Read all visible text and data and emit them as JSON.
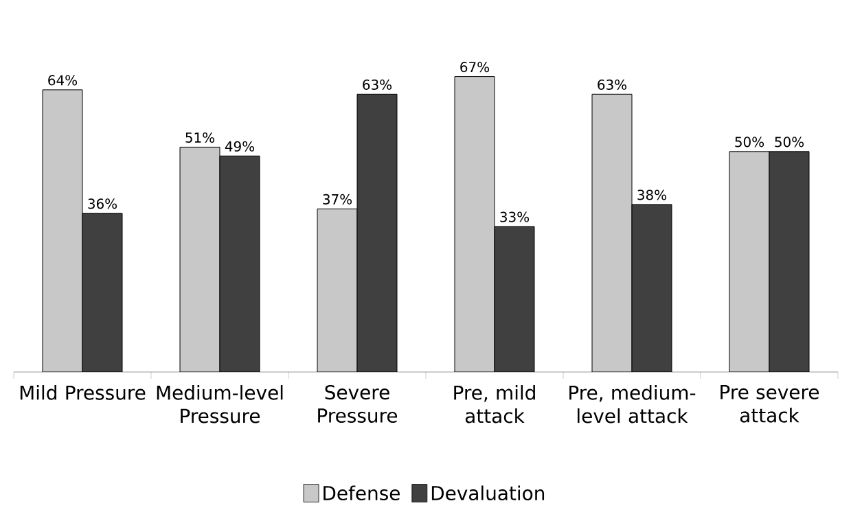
{
  "chart_data": {
    "type": "bar",
    "categories": [
      "Mild Pressure",
      "Medium-level Pressure",
      "Severe Pressure",
      "Pre, mild attack",
      "Pre, medium-level attack",
      "Pre severe attack"
    ],
    "series": [
      {
        "name": "Defense",
        "color": "#c8c8c8",
        "values": [
          64,
          51,
          37,
          67,
          63,
          50
        ],
        "value_labels": [
          "64%",
          "51%",
          "37%",
          "67%",
          "63%",
          "50%"
        ]
      },
      {
        "name": "Devaluation",
        "color": "#404040",
        "values": [
          36,
          49,
          63,
          33,
          38,
          50
        ],
        "value_labels": [
          "36%",
          "49%",
          "63%",
          "33%",
          "38%",
          "50%"
        ]
      }
    ],
    "grid": false,
    "legend": "bottom"
  }
}
